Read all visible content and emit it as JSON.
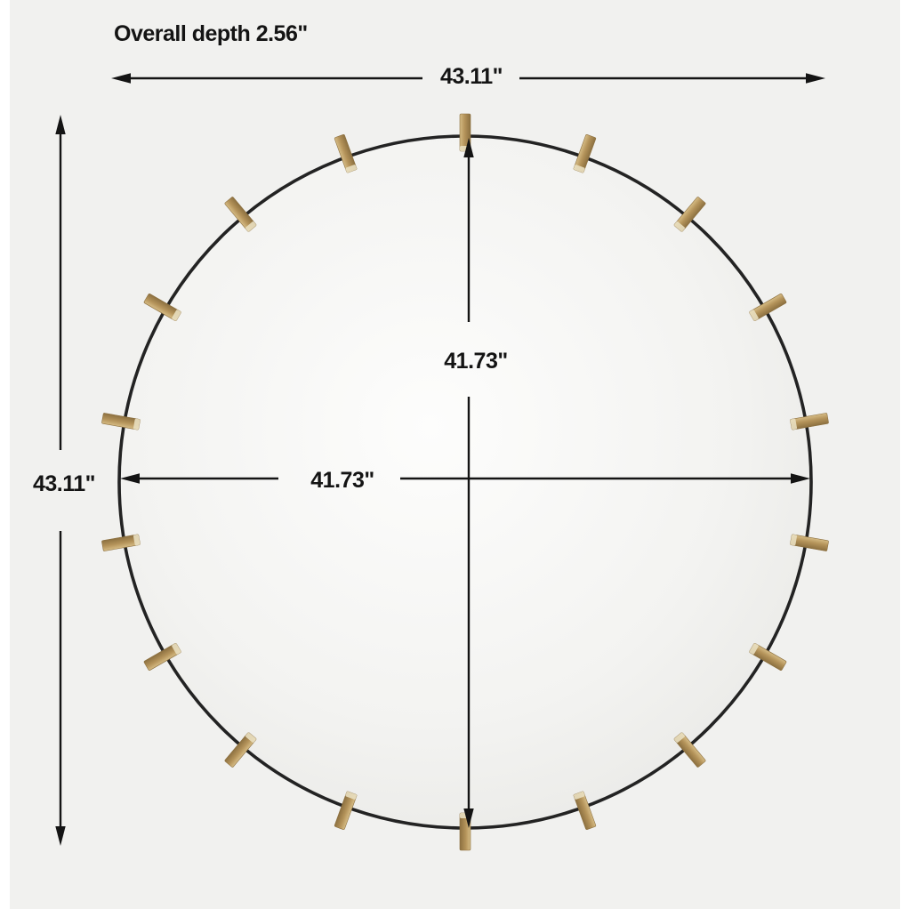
{
  "labels": {
    "overall_depth": "Overall depth 2.56\"",
    "outer_width": "43.11\"",
    "outer_height": "43.11\"",
    "inner_width": "41.73\"",
    "inner_height": "41.73\""
  },
  "mirror": {
    "clip_count": 18,
    "clip_angles_deg": [
      90,
      70,
      50,
      30,
      10,
      -10,
      -30,
      -50,
      -70,
      -90,
      -110,
      -130,
      -150,
      -170,
      170,
      150,
      130,
      110
    ]
  },
  "colors": {
    "page_background": "#ffffff",
    "image_background": "#f1f1ef",
    "dimension_ink": "#141414",
    "rim": "#232323",
    "mirror_center": "#fdfdfc",
    "mirror_mid": "#f3f3f1",
    "mirror_outer": "#e9e9e6",
    "mirror_edge": "#dfdfdd",
    "brass_light": "#d6bc85",
    "brass_mid": "#b4935a",
    "brass_dark": "#8c7040",
    "brass_highlight": "#e9dfc0"
  }
}
